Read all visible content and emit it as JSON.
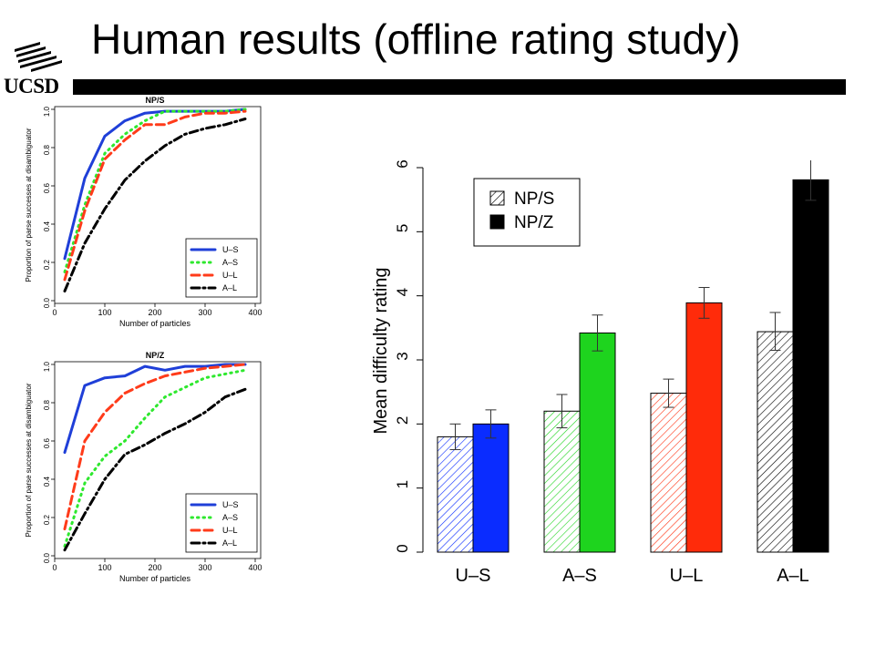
{
  "header": {
    "title": "Human results (offline rating study)",
    "logo_text": "UCSD"
  },
  "chart_data": [
    {
      "type": "line",
      "title": "NP/S",
      "xlabel": "Number of particles",
      "ylabel": "Proportion of parse successes at disambiguator",
      "xlim": [
        0,
        400
      ],
      "ylim": [
        0,
        1.0
      ],
      "xticks": [
        "0",
        "100",
        "200",
        "300",
        "400"
      ],
      "yticks": [
        "0.0",
        "0.2",
        "0.4",
        "0.6",
        "0.8",
        "1.0"
      ],
      "legend_position": "bottom-right",
      "x": [
        20,
        60,
        100,
        140,
        180,
        220,
        260,
        300,
        340,
        380
      ],
      "series": [
        {
          "name": "U–S",
          "color": "#1f3fd8",
          "style": "solid",
          "values": [
            0.22,
            0.64,
            0.86,
            0.94,
            0.98,
            0.99,
            0.99,
            0.99,
            0.99,
            1.0
          ]
        },
        {
          "name": "A–S",
          "color": "#2ee82e",
          "style": "dotted",
          "values": [
            0.15,
            0.5,
            0.77,
            0.87,
            0.94,
            0.99,
            0.99,
            0.99,
            0.99,
            1.0
          ]
        },
        {
          "name": "U–L",
          "color": "#ff3b1a",
          "style": "dashed",
          "values": [
            0.11,
            0.47,
            0.74,
            0.84,
            0.92,
            0.92,
            0.96,
            0.98,
            0.98,
            0.99
          ]
        },
        {
          "name": "A–L",
          "color": "#000000",
          "style": "dashdot",
          "values": [
            0.05,
            0.3,
            0.48,
            0.63,
            0.73,
            0.81,
            0.87,
            0.9,
            0.92,
            0.95
          ]
        }
      ]
    },
    {
      "type": "line",
      "title": "NP/Z",
      "xlabel": "Number of particles",
      "ylabel": "Proportion of parse successes at disambiguator",
      "xlim": [
        0,
        400
      ],
      "ylim": [
        0,
        1.0
      ],
      "xticks": [
        "0",
        "100",
        "200",
        "300",
        "400"
      ],
      "yticks": [
        "0.0",
        "0.2",
        "0.4",
        "0.6",
        "0.8",
        "1.0"
      ],
      "legend_position": "bottom-right",
      "x": [
        20,
        60,
        100,
        140,
        180,
        220,
        260,
        300,
        340,
        380
      ],
      "series": [
        {
          "name": "U–S",
          "color": "#1f3fd8",
          "style": "solid",
          "values": [
            0.54,
            0.89,
            0.93,
            0.94,
            0.99,
            0.97,
            0.99,
            0.99,
            1.0,
            1.0
          ]
        },
        {
          "name": "A–S",
          "color": "#2ee82e",
          "style": "dotted",
          "values": [
            0.05,
            0.38,
            0.52,
            0.6,
            0.72,
            0.83,
            0.88,
            0.93,
            0.95,
            0.97
          ]
        },
        {
          "name": "U–L",
          "color": "#ff3b1a",
          "style": "dashed",
          "values": [
            0.14,
            0.6,
            0.75,
            0.85,
            0.9,
            0.94,
            0.96,
            0.98,
            0.99,
            1.0
          ]
        },
        {
          "name": "A–L",
          "color": "#000000",
          "style": "dashdot",
          "values": [
            0.03,
            0.22,
            0.4,
            0.53,
            0.58,
            0.64,
            0.69,
            0.75,
            0.83,
            0.87
          ]
        }
      ]
    },
    {
      "type": "bar",
      "title": "",
      "xlabel": "",
      "ylabel": "Mean difficulty rating",
      "ylim": [
        0,
        6
      ],
      "yticks": [
        "0",
        "1",
        "2",
        "3",
        "4",
        "5",
        "6"
      ],
      "categories": [
        "U–S",
        "A–S",
        "U–L",
        "A–L"
      ],
      "category_colors": [
        "#0a2cff",
        "#1ed41e",
        "#ff2b0a",
        "#000000"
      ],
      "legend_position": "top-left",
      "series": [
        {
          "name": "NP/S",
          "fill": "hatched",
          "values": [
            1.8,
            2.2,
            2.48,
            3.44
          ],
          "error_low": [
            1.6,
            1.94,
            2.26,
            3.15
          ],
          "error_high": [
            2.0,
            2.46,
            2.7,
            3.74
          ]
        },
        {
          "name": "NP/Z",
          "fill": "solid",
          "values": [
            2.0,
            3.42,
            3.89,
            5.81
          ],
          "error_low": [
            1.78,
            3.14,
            3.65,
            5.49
          ],
          "error_high": [
            2.22,
            3.7,
            4.13,
            6.14
          ]
        }
      ]
    }
  ]
}
